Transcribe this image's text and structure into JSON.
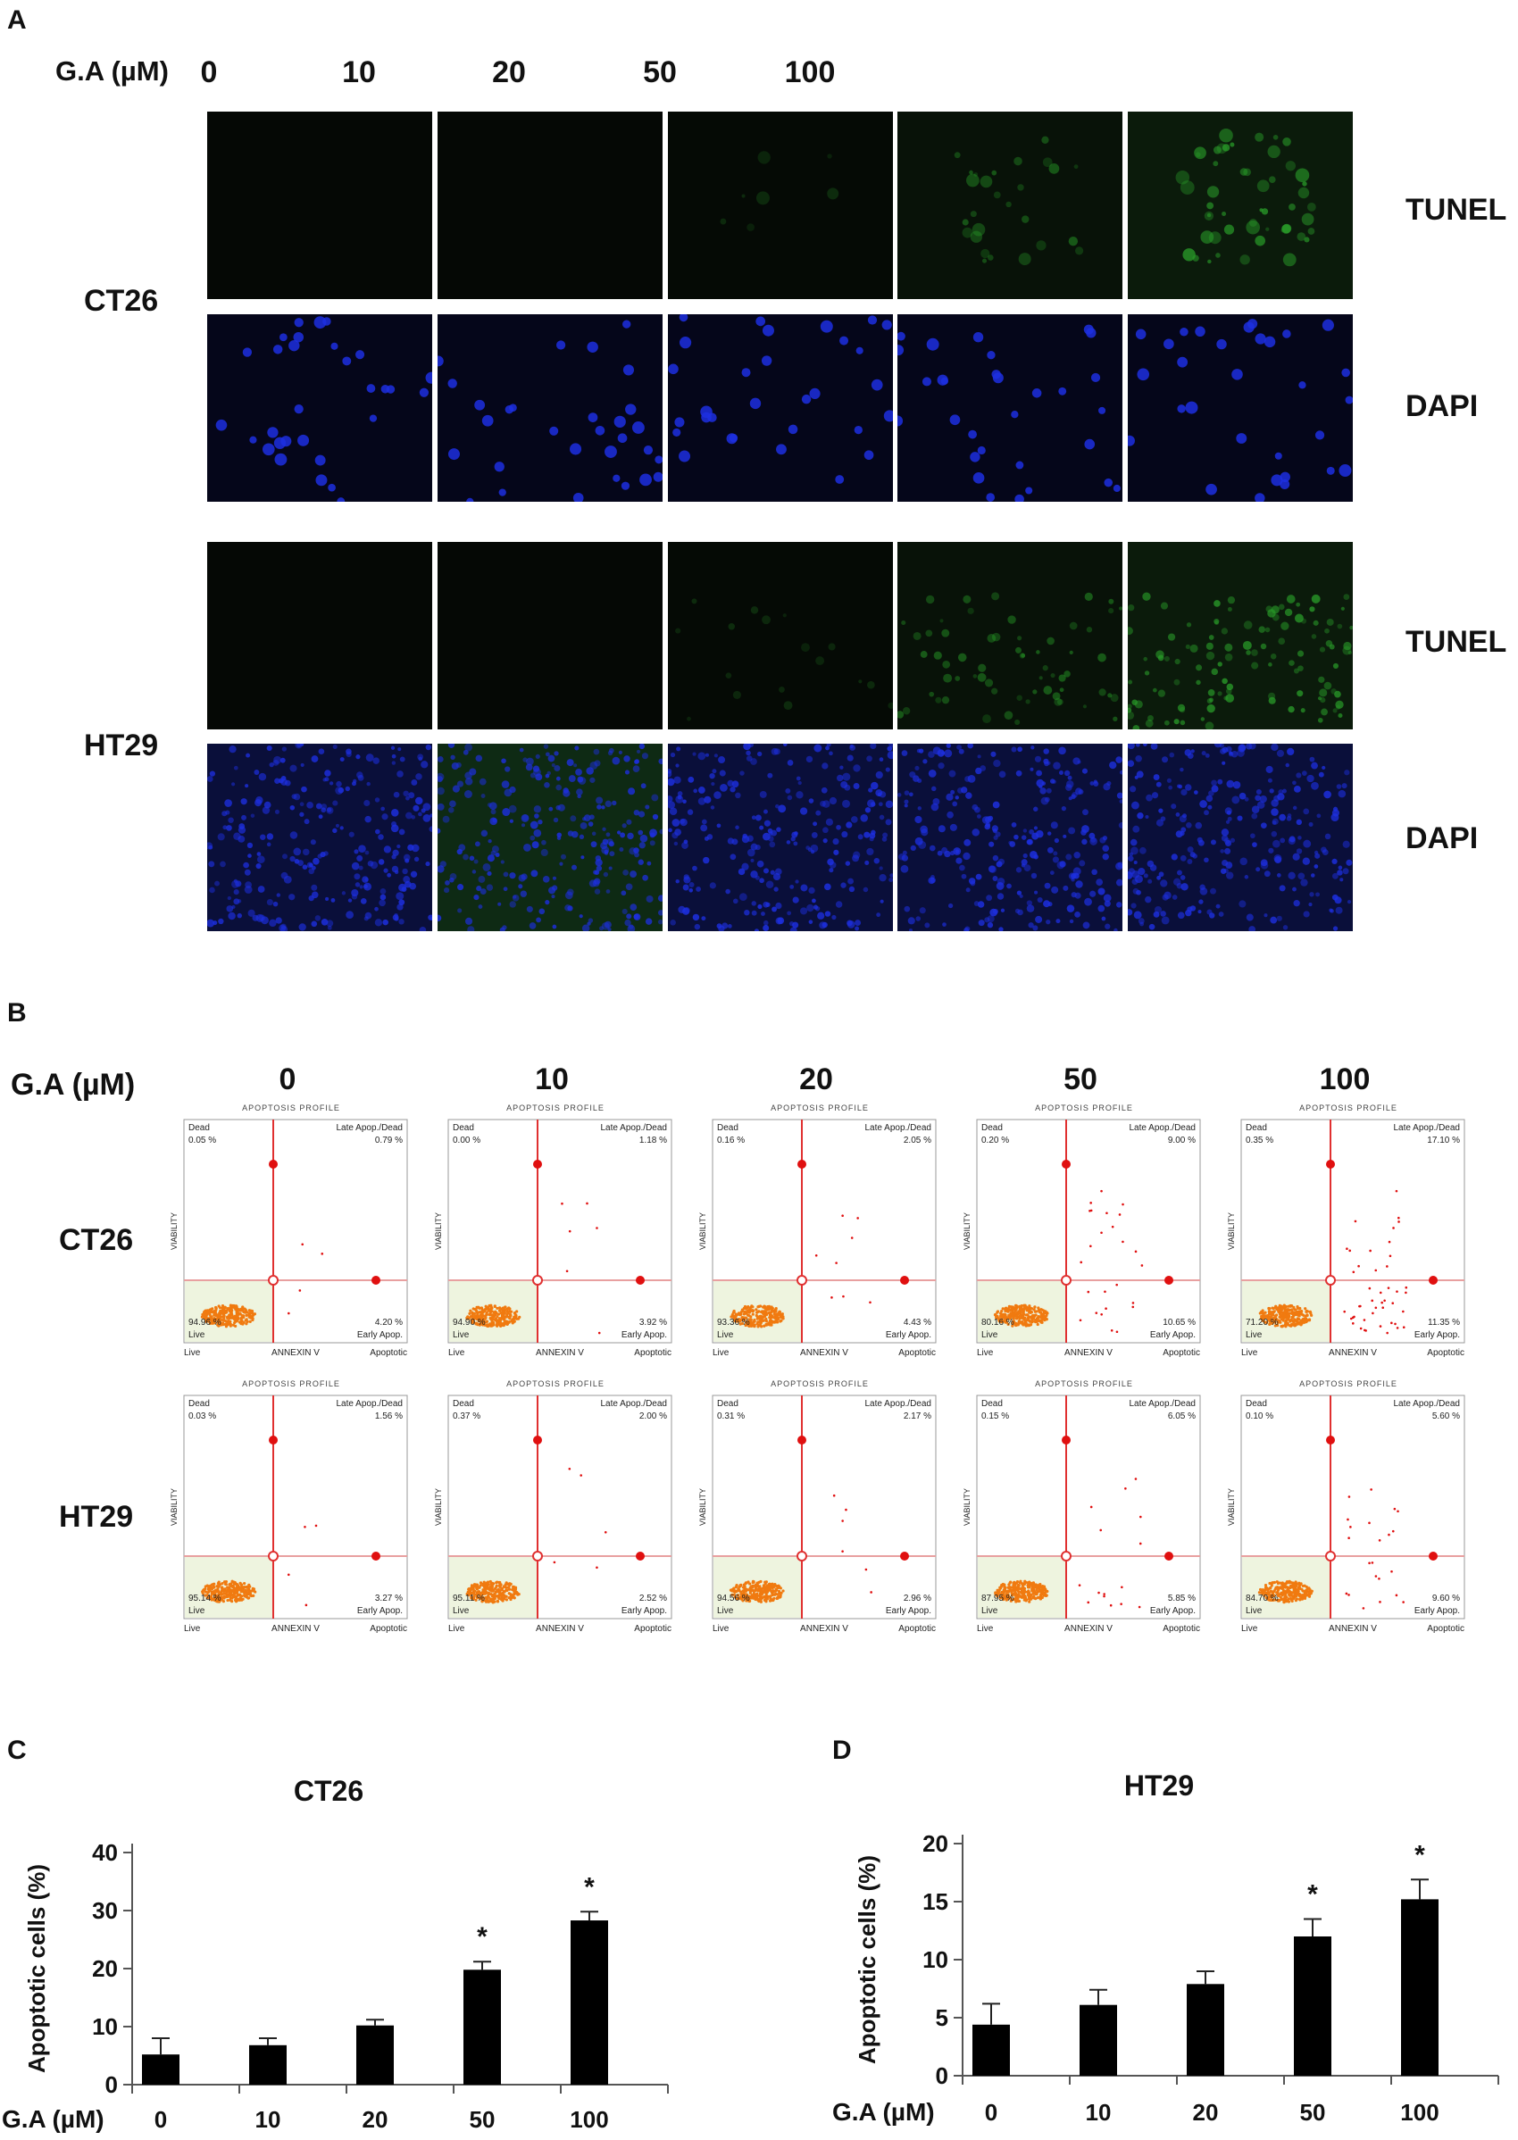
{
  "panels": {
    "A": {
      "letter": "A",
      "axis_label": "G.A (µM)",
      "doses": [
        "0",
        "10",
        "20",
        "50",
        "100"
      ],
      "cell_lines": [
        {
          "name": "CT26",
          "stains": [
            "TUNEL",
            "DAPI"
          ]
        },
        {
          "name": "HT29",
          "stains": [
            "TUNEL",
            "DAPI"
          ]
        }
      ],
      "tunel_color": "#2fbf2f",
      "dapi_color": "#1d2fe0"
    },
    "B": {
      "letter": "B",
      "axis_label": "G.A (µM)",
      "doses": [
        "0",
        "10",
        "20",
        "50",
        "100"
      ],
      "plot_title": "APOPTOSIS PROFILE",
      "x_axis_label": "ANNEXIN V",
      "y_axis_label": "VIABILITY",
      "corner_left": "Live",
      "corner_right": "Apoptotic",
      "quadrant_labels": {
        "ul": "Dead",
        "ur": "Late Apop./Dead",
        "ll": "Live",
        "lr": "Early Apop."
      },
      "cell_lines": [
        {
          "name": "CT26",
          "plots": [
            {
              "dead": "0.05 %",
              "late": "0.79 %",
              "live": "94.96 %",
              "early": "4.20 %"
            },
            {
              "dead": "0.00 %",
              "late": "1.18 %",
              "live": "94.90 %",
              "early": "3.92 %"
            },
            {
              "dead": "0.16 %",
              "late": "2.05 %",
              "live": "93.36 %",
              "early": "4.43 %"
            },
            {
              "dead": "0.20 %",
              "late": "9.00 %",
              "live": "80.16 %",
              "early": "10.65 %"
            },
            {
              "dead": "0.35 %",
              "late": "17.10 %",
              "live": "71.20 %",
              "early": "11.35 %"
            }
          ]
        },
        {
          "name": "HT29",
          "plots": [
            {
              "dead": "0.03 %",
              "late": "1.56 %",
              "live": "95.14 %",
              "early": "3.27 %"
            },
            {
              "dead": "0.37 %",
              "late": "2.00 %",
              "live": "95.11 %",
              "early": "2.52 %"
            },
            {
              "dead": "0.31 %",
              "late": "2.17 %",
              "live": "94.56 %",
              "early": "2.96 %"
            },
            {
              "dead": "0.15 %",
              "late": "6.05 %",
              "live": "87.95 %",
              "early": "5.85 %"
            },
            {
              "dead": "0.10 %",
              "late": "5.60 %",
              "live": "84.70 %",
              "early": "9.60 %"
            }
          ]
        }
      ]
    },
    "C": {
      "letter": "C"
    },
    "D": {
      "letter": "D"
    }
  },
  "chart_data": [
    {
      "type": "bar",
      "title": "CT26",
      "xlabel": "G.A (µM)",
      "ylabel": "Apoptotic cells (%)",
      "categories": [
        "0",
        "10",
        "20",
        "50",
        "100"
      ],
      "values": [
        5.2,
        6.8,
        10.2,
        19.8,
        28.3
      ],
      "errors": [
        2.8,
        1.2,
        1.0,
        1.4,
        1.5
      ],
      "significance": [
        "",
        "",
        "",
        "*",
        "*"
      ],
      "ylim": [
        0,
        40
      ],
      "yticks": [
        "0",
        "10",
        "20",
        "30",
        "40"
      ],
      "bar_color": "#000000"
    },
    {
      "type": "bar",
      "title": "HT29",
      "xlabel": "G.A (µM)",
      "ylabel": "Apoptotic cells (%)",
      "categories": [
        "0",
        "10",
        "20",
        "50",
        "100"
      ],
      "values": [
        4.4,
        6.1,
        7.9,
        12.0,
        15.2
      ],
      "errors": [
        1.8,
        1.3,
        1.1,
        1.5,
        1.7
      ],
      "significance": [
        "",
        "",
        "",
        "*",
        "*"
      ],
      "ylim": [
        0,
        20
      ],
      "yticks": [
        "0",
        "5",
        "10",
        "15",
        "20"
      ],
      "bar_color": "#000000"
    }
  ]
}
